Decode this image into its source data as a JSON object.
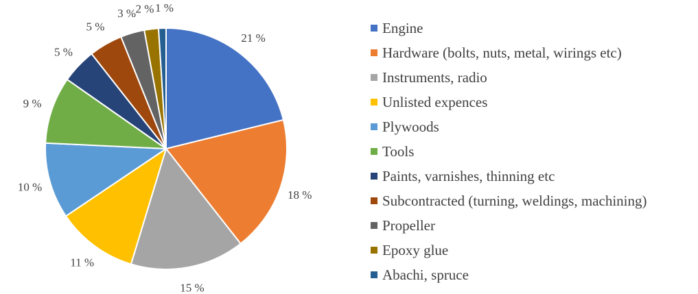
{
  "chart_data": {
    "type": "pie",
    "title": "",
    "legend_position": "right",
    "start_angle_deg": 0,
    "direction": "clockwise",
    "categories": [
      "Engine",
      "Hardware (bolts, nuts, metal, wirings etc)",
      "Instruments, radio",
      "Unlisted expences",
      "Plywoods",
      "Tools",
      "Paints, varnishes, thinning etc",
      "Subcontracted  (turning, weldings, machining)",
      "Propeller",
      "Epoxy glue",
      "Abachi, spruce"
    ],
    "values": [
      21.2,
      18.3,
      15.3,
      10.9,
      10.2,
      9.0,
      4.7,
      4.5,
      3.2,
      1.9,
      1.0
    ],
    "labels": [
      "21 %",
      "18 %",
      "15 %",
      "11 %",
      "10 %",
      "9 %",
      "5 %",
      "5 %",
      "3 %",
      "2 %",
      "1 %"
    ],
    "colors": [
      "#4472C4",
      "#ED7D31",
      "#A5A5A5",
      "#FFC000",
      "#5B9BD5",
      "#70AD47",
      "#264478",
      "#9E480E",
      "#636363",
      "#997300",
      "#255E91"
    ]
  }
}
